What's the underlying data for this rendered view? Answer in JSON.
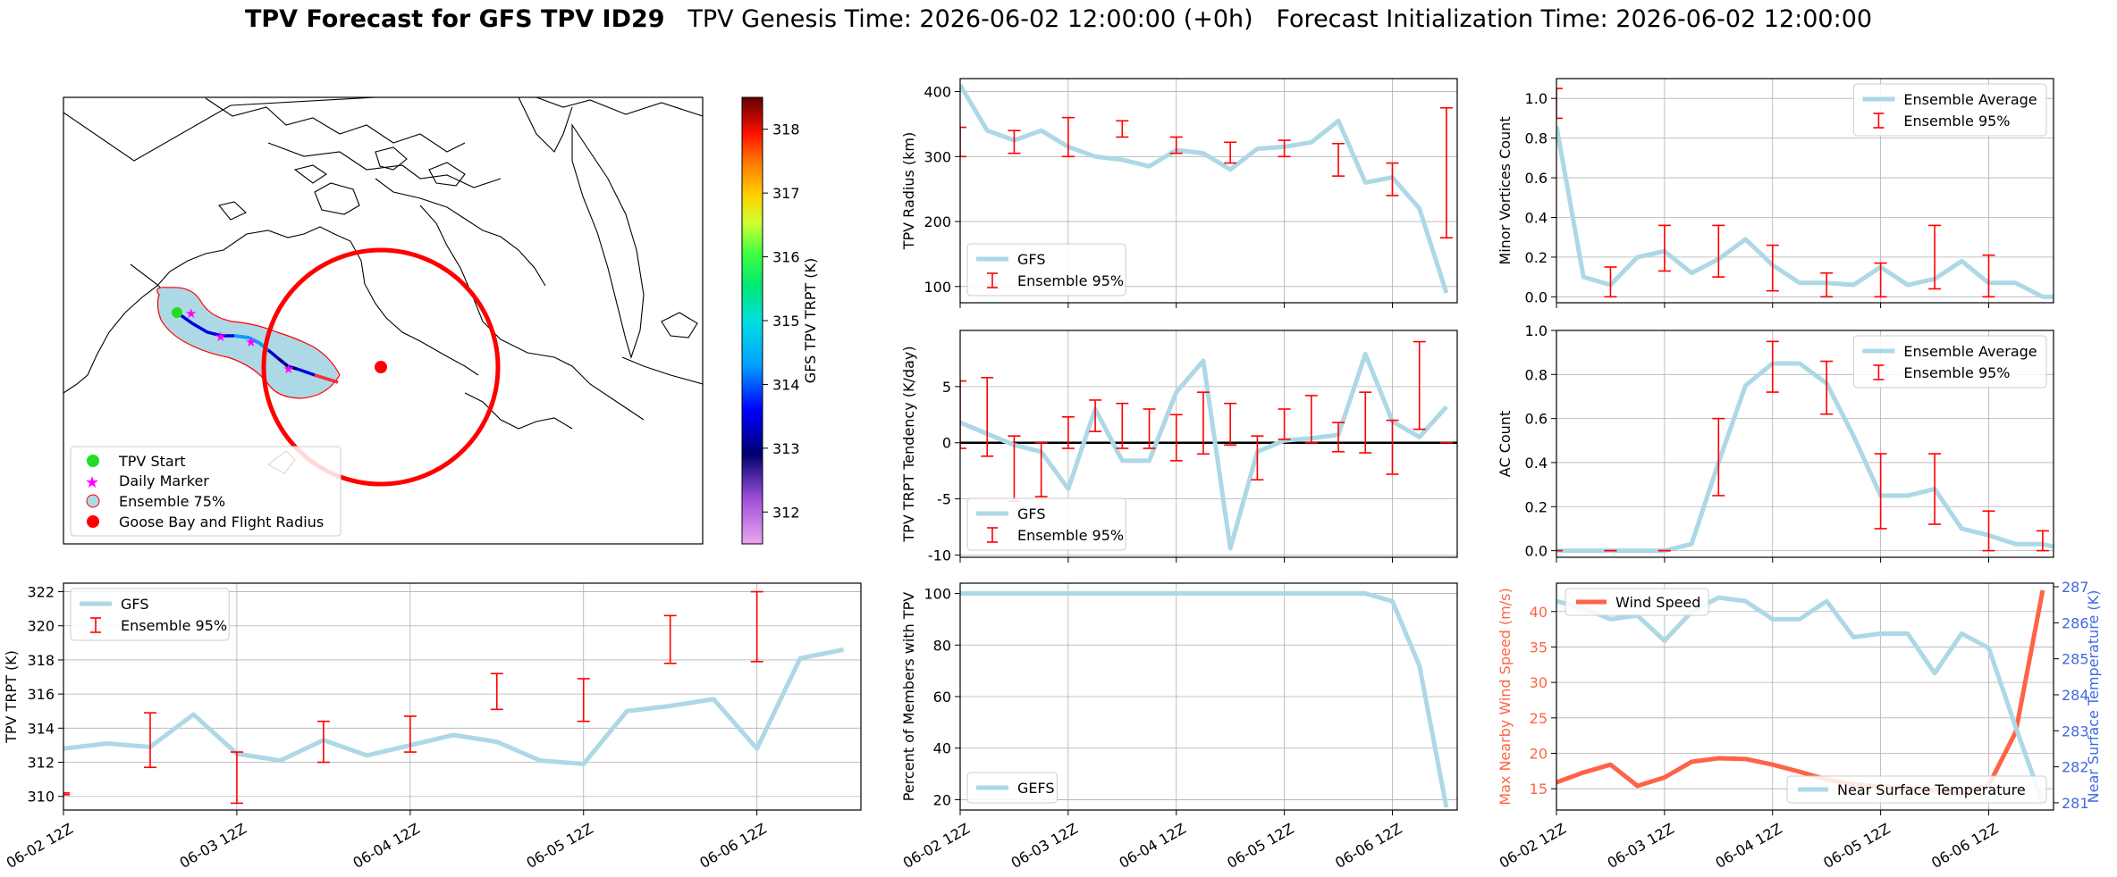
{
  "figure": {
    "title_bold": "TPV Forecast for GFS TPV ID29",
    "title_genesis": "TPV Genesis Time: 2026-06-02 12:00:00 (+0h)",
    "title_init": "Forecast Initialization Time: 2026-06-02 12:00:00"
  },
  "time_ticks": [
    "06-02 12Z",
    "06-03 12Z",
    "06-04 12Z",
    "06-05 12Z",
    "06-06 12Z"
  ],
  "colors": {
    "gfs_line": "#add8e6",
    "ensemble": "#ff0000",
    "wind": "#ff6347",
    "temp_axis": "#4169e1",
    "land_edge": "#000000"
  },
  "chart_data": [
    {
      "id": "map",
      "type": "other",
      "description_kind": "map",
      "colorbar": {
        "label": "GFS TPV TRPT (K)",
        "range": [
          311.5,
          318.5
        ],
        "ticks": [
          312,
          313,
          314,
          315,
          316,
          317,
          318
        ],
        "colormap": "gist_ncar-like"
      },
      "legend": {
        "position": "lower-left",
        "entries": [
          {
            "label": "TPV Start",
            "marker": "circle",
            "color": "#22dd22"
          },
          {
            "label": "Daily Marker",
            "marker": "star",
            "color": "#ff00ff"
          },
          {
            "label": "Ensemble 75%",
            "marker": "circle",
            "color": "#add8e6"
          },
          {
            "label": "Goose Bay and Flight Radius",
            "marker": "circle",
            "color": "#ff0000"
          }
        ]
      }
    },
    {
      "id": "radius",
      "type": "line",
      "ylabel": "TPV Radius (km)",
      "ylim": [
        75,
        420
      ],
      "yticks": [
        100,
        200,
        300,
        400
      ],
      "legend_position": "lower-left",
      "series": [
        {
          "name": "GFS",
          "kind": "line",
          "x": [
            0,
            0.25,
            0.5,
            0.75,
            1,
            1.25,
            1.5,
            1.75,
            2,
            2.25,
            2.5,
            2.75,
            3,
            3.25,
            3.5,
            3.75,
            4,
            4.25,
            4.5,
            4.75
          ],
          "y": [
            410,
            340,
            325,
            340,
            315,
            300,
            295,
            285,
            310,
            305,
            280,
            312,
            315,
            322,
            355,
            260,
            268,
            220,
            90,
            null
          ]
        },
        {
          "name": "Ensemble 95%",
          "kind": "errorbar",
          "x": [
            0,
            0.5,
            1,
            1.5,
            2,
            2.5,
            3,
            3.5,
            4,
            4.5
          ],
          "low": [
            300,
            305,
            300,
            330,
            305,
            290,
            300,
            270,
            240,
            175
          ],
          "high": [
            345,
            340,
            360,
            355,
            330,
            322,
            325,
            320,
            290,
            375
          ]
        }
      ]
    },
    {
      "id": "minor_vortices",
      "type": "line",
      "ylabel": "Minor Vortices Count",
      "ylim": [
        -0.03,
        1.1
      ],
      "yticks": [
        0.0,
        0.2,
        0.4,
        0.6,
        0.8,
        1.0
      ],
      "legend_position": "upper-right",
      "series": [
        {
          "name": "Ensemble Average",
          "kind": "line",
          "x": [
            0,
            0.25,
            0.5,
            0.75,
            1,
            1.25,
            1.5,
            1.75,
            2,
            2.25,
            2.5,
            2.75,
            3,
            3.25,
            3.5,
            3.75,
            4,
            4.25,
            4.5,
            4.75
          ],
          "y": [
            0.86,
            0.1,
            0.06,
            0.2,
            0.23,
            0.12,
            0.19,
            0.29,
            0.16,
            0.07,
            0.07,
            0.06,
            0.15,
            0.06,
            0.09,
            0.18,
            0.07,
            0.07,
            0.0,
            0.0
          ]
        },
        {
          "name": "Ensemble 95%",
          "kind": "errorbar",
          "x": [
            0,
            0.5,
            1,
            1.5,
            2,
            2.5,
            3,
            3.5,
            4
          ],
          "low": [
            0.9,
            0.0,
            0.13,
            0.1,
            0.03,
            0.0,
            0.0,
            0.04,
            0.0
          ],
          "high": [
            1.05,
            0.15,
            0.36,
            0.36,
            0.26,
            0.12,
            0.17,
            0.36,
            0.21
          ]
        }
      ]
    },
    {
      "id": "tendency",
      "type": "line",
      "ylabel": "TPV TRPT Tendency (K/day)",
      "ylim": [
        -10.2,
        10
      ],
      "yticks": [
        -10,
        -5,
        0,
        5
      ],
      "zero_line": true,
      "legend_position": "lower-left",
      "series": [
        {
          "name": "GFS",
          "kind": "line",
          "x": [
            0,
            0.25,
            0.5,
            0.75,
            1,
            1.25,
            1.5,
            1.75,
            2,
            2.25,
            2.5,
            2.75,
            3,
            3.25,
            3.5,
            3.75,
            4,
            4.25,
            4.5
          ],
          "y": [
            1.8,
            0.8,
            -0.2,
            -0.8,
            -4.1,
            3.0,
            -1.6,
            -1.6,
            4.5,
            7.3,
            -9.4,
            -0.8,
            0.2,
            0.4,
            0.7,
            7.9,
            1.9,
            0.5,
            3.2
          ]
        },
        {
          "name": "Ensemble 95%",
          "kind": "errorbar",
          "x": [
            0,
            0.25,
            0.5,
            0.75,
            1,
            1.25,
            1.5,
            1.75,
            2,
            2.25,
            2.5,
            2.75,
            3,
            3.25,
            3.5,
            3.75,
            4,
            4.25,
            4.5
          ],
          "low": [
            -0.5,
            -1.2,
            -5.2,
            -4.8,
            -0.5,
            1.0,
            -0.5,
            -0.5,
            -1.6,
            -1.0,
            -0.2,
            -3.3,
            0.3,
            0.0,
            -0.8,
            -0.9,
            -2.8,
            1.2,
            0.0
          ],
          "high": [
            5.5,
            5.8,
            0.6,
            0.0,
            2.3,
            3.8,
            3.5,
            3.0,
            2.5,
            4.5,
            3.5,
            0.6,
            3.0,
            4.2,
            1.8,
            4.5,
            2.0,
            9.0,
            0.0
          ]
        }
      ]
    },
    {
      "id": "ac_count",
      "type": "line",
      "ylabel": "AC Count",
      "ylim": [
        -0.03,
        1.0
      ],
      "yticks": [
        0.0,
        0.2,
        0.4,
        0.6,
        0.8,
        1.0
      ],
      "legend_position": "upper-right",
      "series": [
        {
          "name": "Ensemble Average",
          "kind": "line",
          "x": [
            0,
            0.25,
            0.5,
            0.75,
            1,
            1.25,
            1.5,
            1.75,
            2,
            2.25,
            2.5,
            2.75,
            3,
            3.25,
            3.5,
            3.75,
            4,
            4.25,
            4.5,
            4.75
          ],
          "y": [
            0.0,
            0.0,
            0.0,
            0.0,
            0.0,
            0.03,
            0.4,
            0.75,
            0.85,
            0.85,
            0.76,
            0.52,
            0.25,
            0.25,
            0.28,
            0.1,
            0.07,
            0.03,
            0.03,
            0.0
          ]
        },
        {
          "name": "Ensemble 95%",
          "kind": "errorbar",
          "x": [
            0,
            0.5,
            1,
            1.5,
            2,
            2.5,
            3,
            3.5,
            4,
            4.5
          ],
          "low": [
            0.0,
            0.0,
            0.0,
            0.25,
            0.72,
            0.62,
            0.1,
            0.12,
            0.0,
            0.0
          ],
          "high": [
            0.0,
            0.0,
            0.0,
            0.6,
            0.95,
            0.86,
            0.44,
            0.44,
            0.18,
            0.09
          ]
        }
      ]
    },
    {
      "id": "trpt",
      "type": "line",
      "ylabel": "TPV TRPT (K)",
      "ylim": [
        309.2,
        322.5
      ],
      "yticks": [
        310,
        312,
        314,
        316,
        318,
        320,
        322
      ],
      "legend_position": "upper-left",
      "series": [
        {
          "name": "GFS",
          "kind": "line",
          "x": [
            0,
            0.25,
            0.5,
            0.75,
            1,
            1.25,
            1.5,
            1.75,
            2,
            2.25,
            2.5,
            2.75,
            3,
            3.25,
            3.5,
            3.75,
            4,
            4.25,
            4.5
          ],
          "y": [
            312.8,
            313.1,
            312.9,
            314.8,
            312.5,
            312.1,
            313.3,
            312.4,
            313.0,
            313.6,
            313.2,
            312.1,
            311.9,
            315.0,
            315.3,
            315.7,
            312.8,
            318.1,
            318.6
          ]
        },
        {
          "name": "Ensemble 95%",
          "kind": "errorbar",
          "x": [
            0,
            0.5,
            1,
            1.5,
            2,
            2.5,
            3,
            3.5,
            4
          ],
          "low": [
            310.1,
            311.7,
            309.6,
            312.0,
            312.6,
            315.1,
            314.4,
            317.8,
            317.9
          ],
          "high": [
            310.2,
            314.9,
            312.6,
            314.4,
            314.7,
            317.2,
            316.9,
            320.6,
            322.0
          ]
        }
      ]
    },
    {
      "id": "members",
      "type": "line",
      "ylabel": "Percent of Members with TPV",
      "ylim": [
        16,
        104
      ],
      "yticks": [
        20,
        40,
        60,
        80,
        100
      ],
      "legend_position": "lower-left",
      "series": [
        {
          "name": "GEFS",
          "kind": "line",
          "x": [
            0,
            0.25,
            0.5,
            0.75,
            1,
            1.25,
            1.5,
            1.75,
            2,
            2.25,
            2.5,
            2.75,
            3,
            3.25,
            3.5,
            3.75,
            4,
            4.25,
            4.5
          ],
          "y": [
            100,
            100,
            100,
            100,
            100,
            100,
            100,
            100,
            100,
            100,
            100,
            100,
            100,
            100,
            100,
            100,
            97,
            72,
            17
          ]
        }
      ]
    },
    {
      "id": "wind_temp",
      "type": "line",
      "ylabel_left": "Max Nearby Wind Speed (m/s)",
      "ylabel_right": "Near Surface Temperature (K)",
      "ylim_left": [
        12,
        44
      ],
      "yticks_left": [
        15,
        20,
        25,
        30,
        35,
        40
      ],
      "ylim_right": [
        280.8,
        287.1
      ],
      "yticks_right": [
        281,
        282,
        283,
        284,
        285,
        286,
        287
      ],
      "series": [
        {
          "name": "Wind Speed",
          "kind": "line",
          "axis": "left",
          "x": [
            0,
            0.25,
            0.5,
            0.75,
            1,
            1.25,
            1.5,
            1.75,
            2,
            2.25,
            2.5,
            2.75,
            3,
            3.25,
            3.5,
            3.75,
            4,
            4.25,
            4.5
          ],
          "y": [
            15.9,
            17.3,
            18.4,
            15.4,
            16.6,
            18.8,
            19.3,
            19.2,
            18.4,
            17.4,
            16.3,
            15.6,
            15.3,
            15.0,
            14.8,
            14.4,
            15.5,
            23.0,
            43.0
          ]
        },
        {
          "name": "Near Surface Temperature",
          "kind": "line",
          "axis": "right",
          "x": [
            0,
            0.25,
            0.5,
            0.75,
            1,
            1.25,
            1.5,
            1.75,
            2,
            2.25,
            2.5,
            2.75,
            3,
            3.25,
            3.5,
            3.75,
            4,
            4.25,
            4.5
          ],
          "y": [
            286.6,
            286.4,
            286.1,
            286.2,
            285.5,
            286.3,
            286.7,
            286.6,
            286.1,
            286.1,
            286.6,
            285.6,
            285.7,
            285.7,
            284.6,
            285.7,
            285.3,
            283.1,
            281.0
          ]
        }
      ]
    }
  ]
}
